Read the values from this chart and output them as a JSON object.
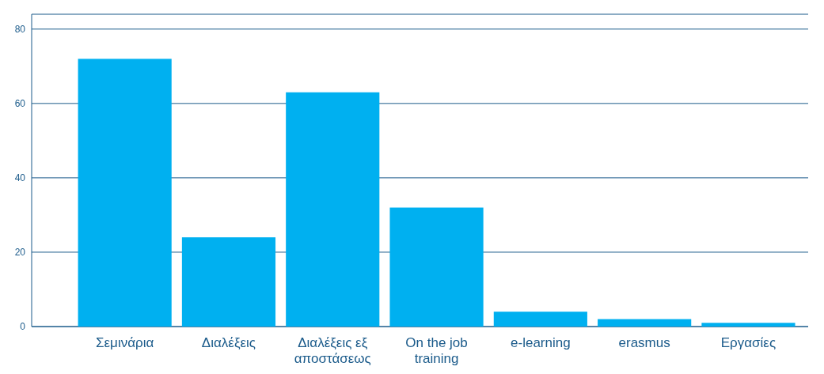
{
  "chart_data": {
    "type": "bar",
    "categories": [
      "Σεμινάρια",
      "Διαλέξεις",
      "Διαλέξεις εξ αποστάσεως",
      "On the job training",
      "e-learning",
      "erasmus",
      "Εργασίες"
    ],
    "values": [
      72,
      24,
      63,
      32,
      4,
      2,
      1
    ],
    "color": "#00b0f0",
    "ylim": [
      0,
      84
    ],
    "yticks": [
      0,
      20,
      40,
      60,
      80
    ],
    "grid": "y"
  }
}
